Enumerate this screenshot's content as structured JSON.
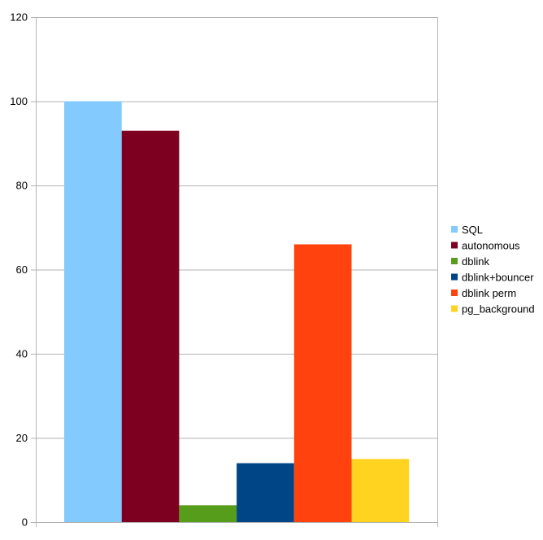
{
  "chart_data": {
    "type": "bar",
    "title": "",
    "xlabel": "",
    "ylabel": "",
    "ylim": [
      0,
      120
    ],
    "yticks": [
      0,
      20,
      40,
      60,
      80,
      100,
      120
    ],
    "categories": [
      ""
    ],
    "series": [
      {
        "name": "SQL",
        "values": [
          100
        ],
        "color": "#83caff"
      },
      {
        "name": "autonomous",
        "values": [
          93
        ],
        "color": "#7e0021"
      },
      {
        "name": "dblink",
        "values": [
          4
        ],
        "color": "#579d1c"
      },
      {
        "name": "dblink+bouncer",
        "values": [
          14
        ],
        "color": "#004586"
      },
      {
        "name": "dblink perm",
        "values": [
          66
        ],
        "color": "#ff420e"
      },
      {
        "name": "pg_background",
        "values": [
          15
        ],
        "color": "#ffd320"
      }
    ],
    "grid": true,
    "legend_position": "right"
  }
}
